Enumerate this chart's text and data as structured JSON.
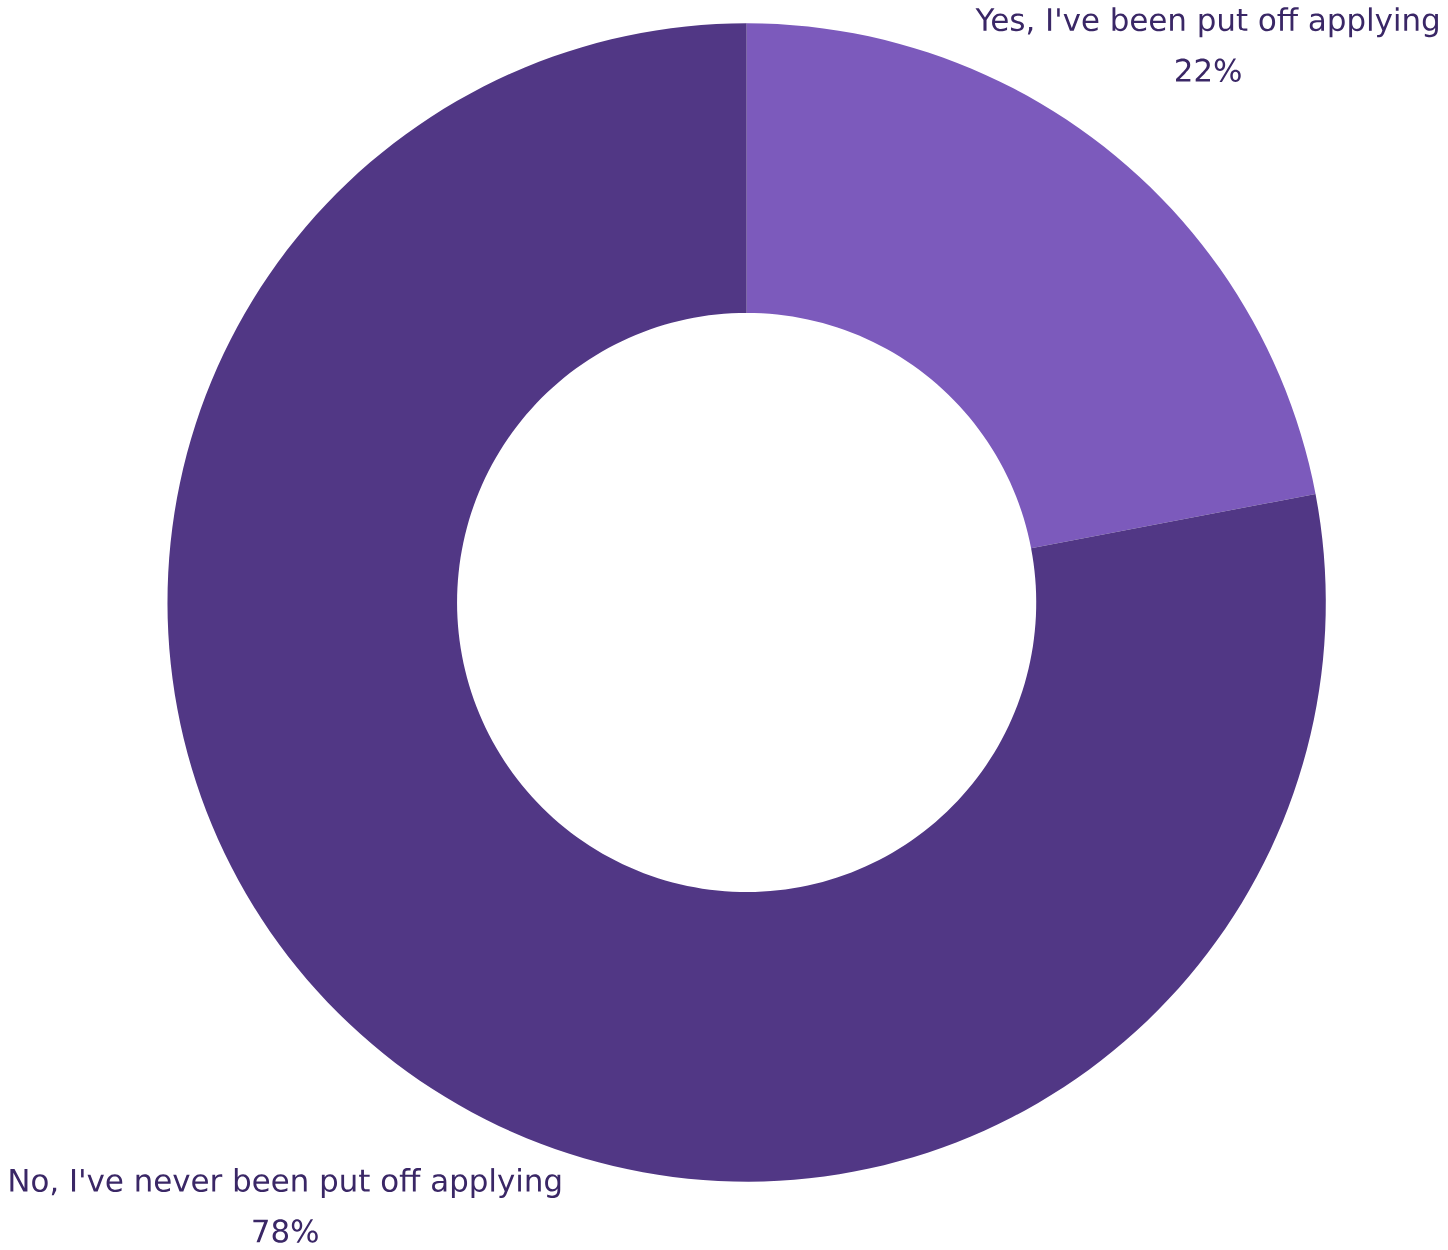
{
  "chart_data": {
    "type": "donut",
    "categories": [
      "Yes, I've been put off applying",
      "No, I've never been put off applying"
    ],
    "values": [
      22,
      78
    ],
    "colors": [
      "#7c5abc",
      "#513785"
    ],
    "value_labels": [
      "22%",
      "78%"
    ]
  }
}
